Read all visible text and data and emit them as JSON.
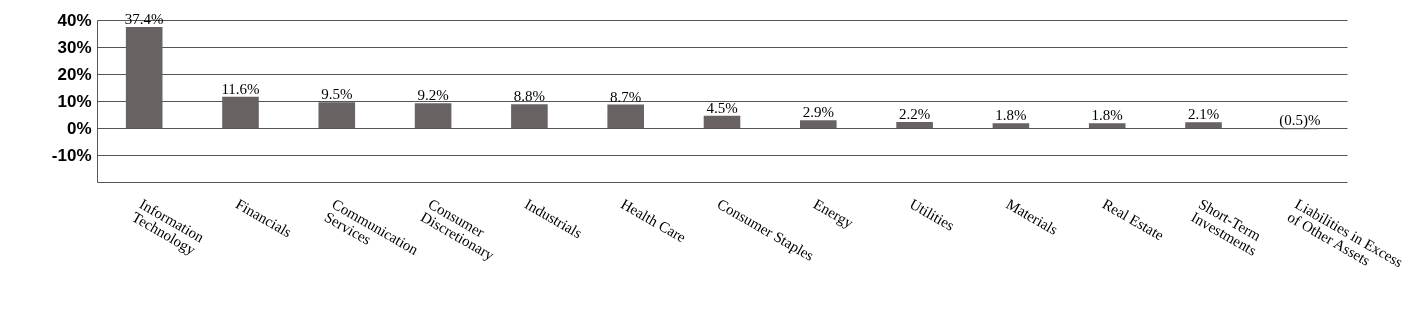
{
  "chart_data": {
    "type": "bar",
    "categories": [
      "Information Technology",
      "Financials",
      "Communication Services",
      "Consumer Discretionary",
      "Industrials",
      "Health Care",
      "Consumer Staples",
      "Energy",
      "Utilities",
      "Materials",
      "Real Estate",
      "Short-Term Investments",
      "Liabilities in Excess of Other Assets"
    ],
    "values": [
      37.4,
      11.6,
      9.5,
      9.2,
      8.8,
      8.7,
      4.5,
      2.9,
      2.2,
      1.8,
      1.8,
      2.1,
      -0.5
    ],
    "value_labels": [
      "37.4%",
      "11.6%",
      "9.5%",
      "9.2%",
      "8.8%",
      "8.7%",
      "4.5%",
      "2.9%",
      "2.2%",
      "1.8%",
      "1.8%",
      "2.1%",
      "(0.5)%"
    ],
    "color": "#686262",
    "ylim": [
      -20,
      40
    ],
    "yticks": [
      {
        "value": -10,
        "label": "-10%"
      },
      {
        "value": 0,
        "label": "0%"
      },
      {
        "value": 10,
        "label": "10%"
      },
      {
        "value": 20,
        "label": "20%"
      },
      {
        "value": 30,
        "label": "30%"
      },
      {
        "value": 40,
        "label": "40%"
      }
    ],
    "grid": "y"
  }
}
